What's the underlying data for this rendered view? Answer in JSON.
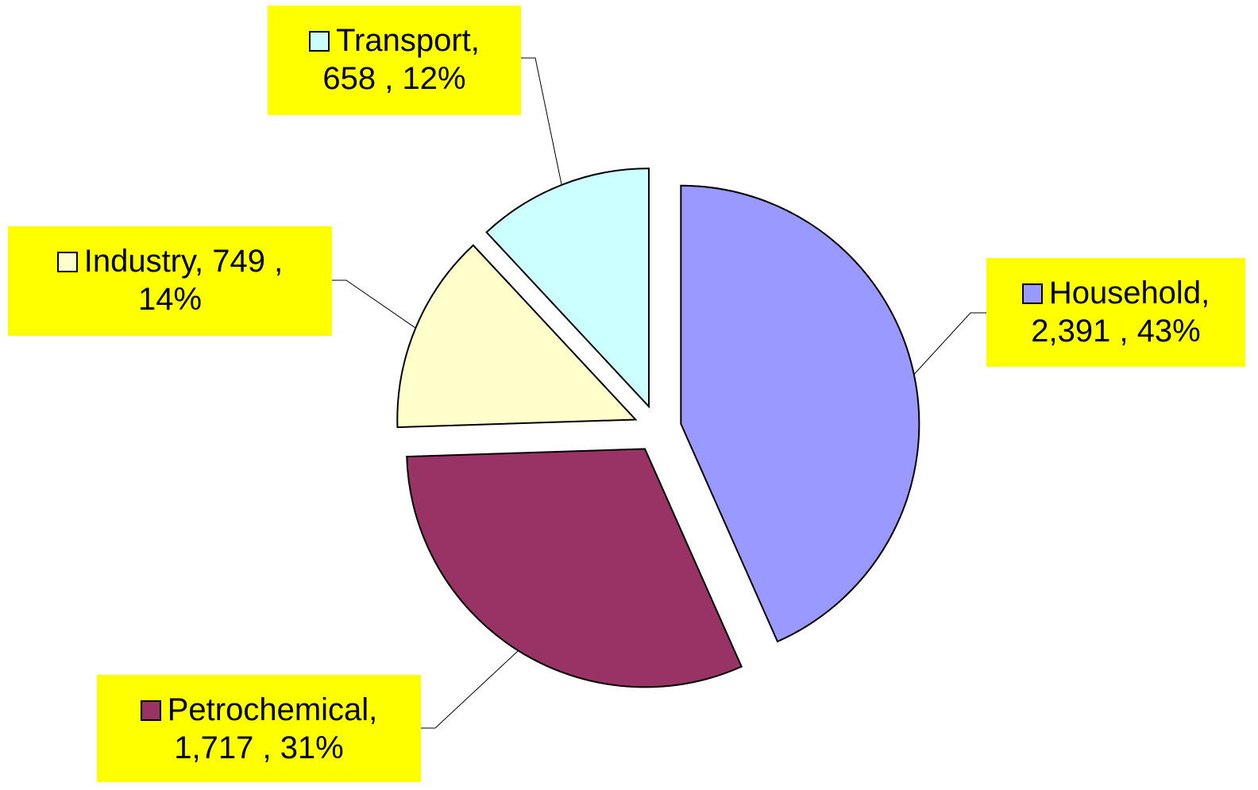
{
  "chart_data": {
    "type": "pie",
    "categories": [
      "Household",
      "Petrochemical",
      "Industry",
      "Transport"
    ],
    "values": [
      2391,
      1717,
      749,
      658
    ],
    "value_labels": [
      "2,391",
      "1,717",
      "749",
      "658"
    ],
    "percents": [
      43,
      31,
      14,
      12
    ],
    "percent_labels": [
      "43%",
      "31%",
      "14%",
      "12%"
    ],
    "colors": [
      "#9999ff",
      "#993366",
      "#ffffcc",
      "#ccffff"
    ]
  }
}
